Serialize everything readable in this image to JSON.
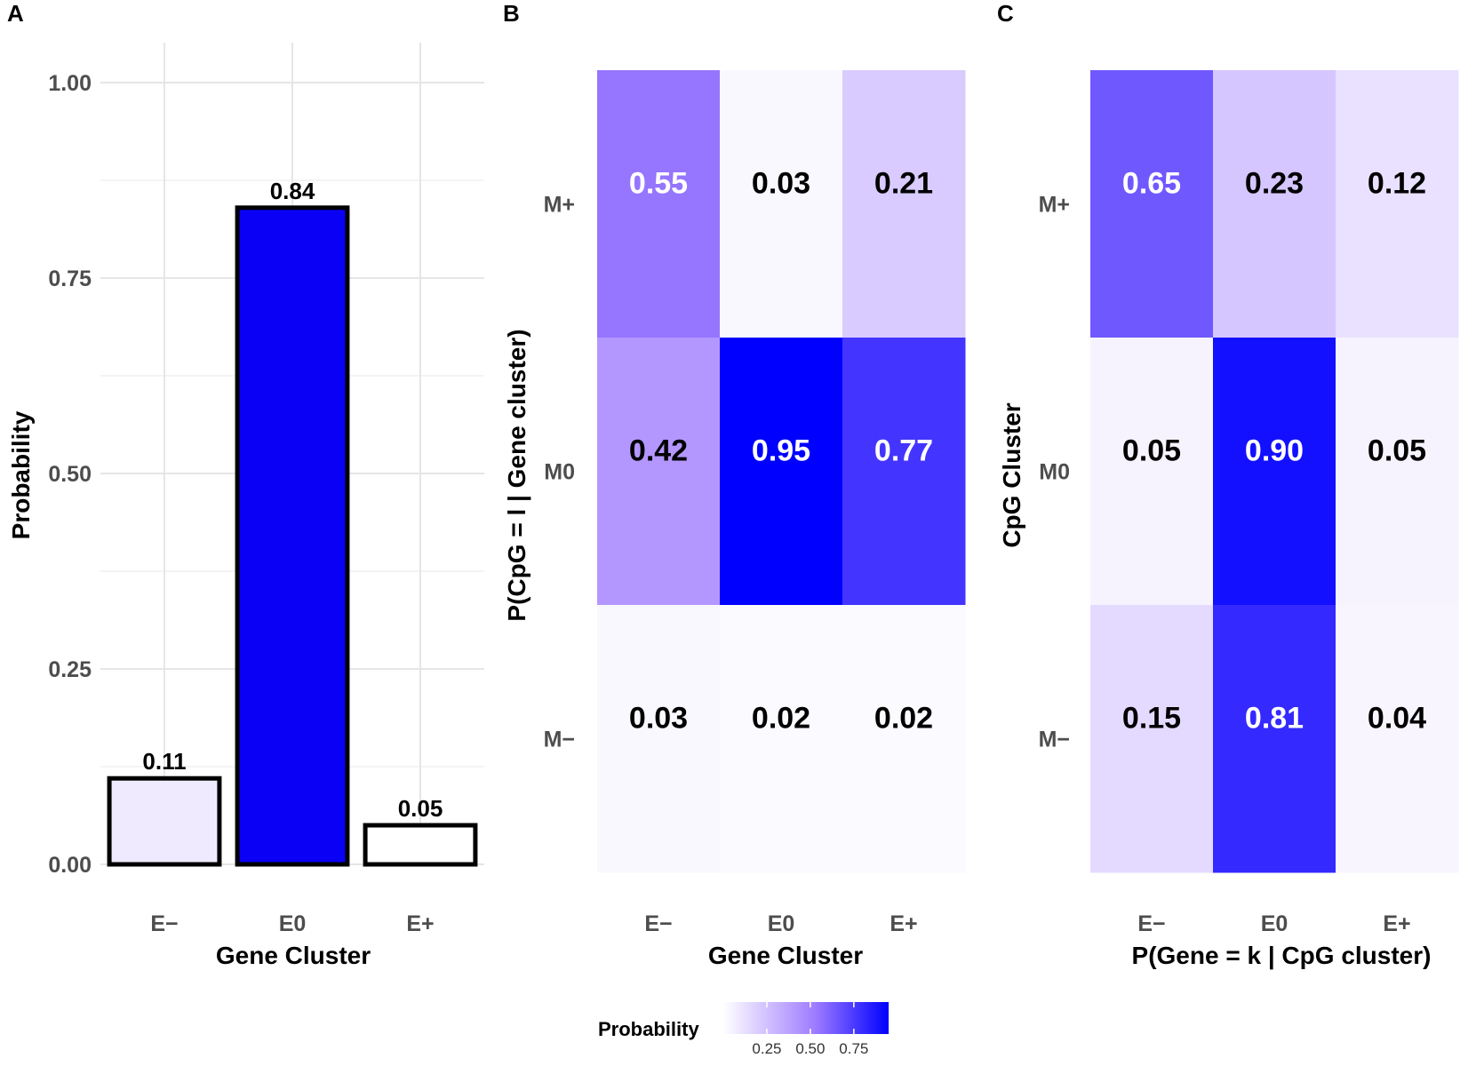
{
  "panels": {
    "a": "A",
    "b": "B",
    "c": "C"
  },
  "chart_data": [
    {
      "type": "bar",
      "panel": "A",
      "categories": [
        "E−",
        "E0",
        "E+"
      ],
      "values": [
        0.11,
        0.84,
        0.05
      ],
      "value_labels": [
        "0.11",
        "0.84",
        "0.05"
      ],
      "fills": [
        "#efeafe",
        "#0a00f5",
        "#ffffff"
      ],
      "xlabel": "Gene Cluster",
      "ylabel": "Probability",
      "ylim": [
        0,
        1.0
      ],
      "yticks": [
        0,
        0.25,
        0.5,
        0.75,
        1.0
      ],
      "ytick_labels": [
        "0.00",
        "0.25",
        "0.50",
        "0.75",
        "1.00"
      ],
      "grid": true
    },
    {
      "type": "heatmap",
      "panel": "B",
      "x_categories": [
        "E−",
        "E0",
        "E+"
      ],
      "y_categories": [
        "M+",
        "M0",
        "M−"
      ],
      "values": [
        [
          0.55,
          0.03,
          0.21
        ],
        [
          0.42,
          0.95,
          0.77
        ],
        [
          0.03,
          0.02,
          0.02
        ]
      ],
      "labels": [
        [
          "0.55",
          "0.03",
          "0.21"
        ],
        [
          "0.42",
          "0.95",
          "0.77"
        ],
        [
          "0.03",
          "0.02",
          "0.02"
        ]
      ],
      "xlabel": "Gene Cluster",
      "ylabel": "P(CpG = l | Gene cluster)"
    },
    {
      "type": "heatmap",
      "panel": "C",
      "x_categories": [
        "E−",
        "E0",
        "E+"
      ],
      "y_categories": [
        "M+",
        "M0",
        "M−"
      ],
      "values": [
        [
          0.65,
          0.23,
          0.12
        ],
        [
          0.05,
          0.9,
          0.05
        ],
        [
          0.15,
          0.81,
          0.04
        ]
      ],
      "labels": [
        [
          "0.65",
          "0.23",
          "0.12"
        ],
        [
          "0.05",
          "0.90",
          "0.05"
        ],
        [
          "0.15",
          "0.81",
          "0.04"
        ]
      ],
      "xlabel": "P(Gene = k | CpG cluster)",
      "ylabel": "CpG Cluster"
    }
  ],
  "legend": {
    "title": "Probability",
    "ticks": [
      0.25,
      0.5,
      0.75
    ],
    "tick_labels": [
      "0.25",
      "0.50",
      "0.75"
    ],
    "range": [
      0,
      0.95
    ],
    "low_color": "#ffffff",
    "high_color": "#0000ff",
    "mid_color": "#a07dff"
  }
}
